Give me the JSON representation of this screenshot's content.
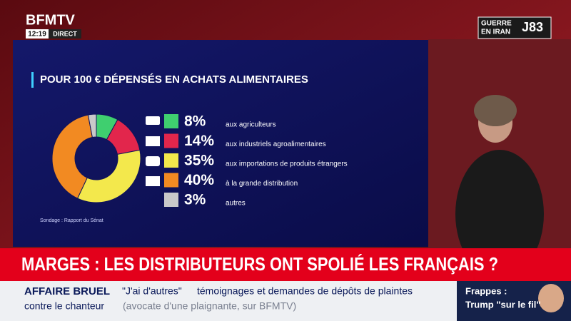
{
  "header": {
    "channel": "BFMTV",
    "time": "12:19",
    "live": "DIRECT",
    "badge_line1": "GUERRE",
    "badge_line2": "EN IRAN",
    "badge_day": "J83"
  },
  "chart_data": {
    "type": "donut",
    "title": "POUR 100 € DÉPENSÉS EN ACHATS ALIMENTAIRES",
    "categories": [
      "aux agriculteurs",
      "aux industriels agroalimentaires",
      "aux importations de produits étrangers",
      "à la grande distribution",
      "autres"
    ],
    "values": [
      8,
      14,
      35,
      40,
      3
    ],
    "value_labels": [
      "8%",
      "14%",
      "35%",
      "40%",
      "3%"
    ],
    "colors": [
      "#3fcf6f",
      "#e2264c",
      "#f3e84c",
      "#f28a22",
      "#c9c9c9"
    ],
    "source": "Sondage : Rapport du Sénat"
  },
  "headline": "MARGES : LES DISTRIBUTEURS ONT SPOLIÉ LES FRANÇAIS ?",
  "ticker": {
    "tag": "AFFAIRE BRUEL",
    "quote": "\"J'ai d'autres\"",
    "text": "témoignages et demandes de dépôts de plaintes",
    "line2": "contre le chanteur",
    "source": "(avocate d'une plaignante, sur BFMTV)"
  },
  "side": {
    "line1": "Frappes :",
    "line2": "Trump \"sur le fil\""
  }
}
